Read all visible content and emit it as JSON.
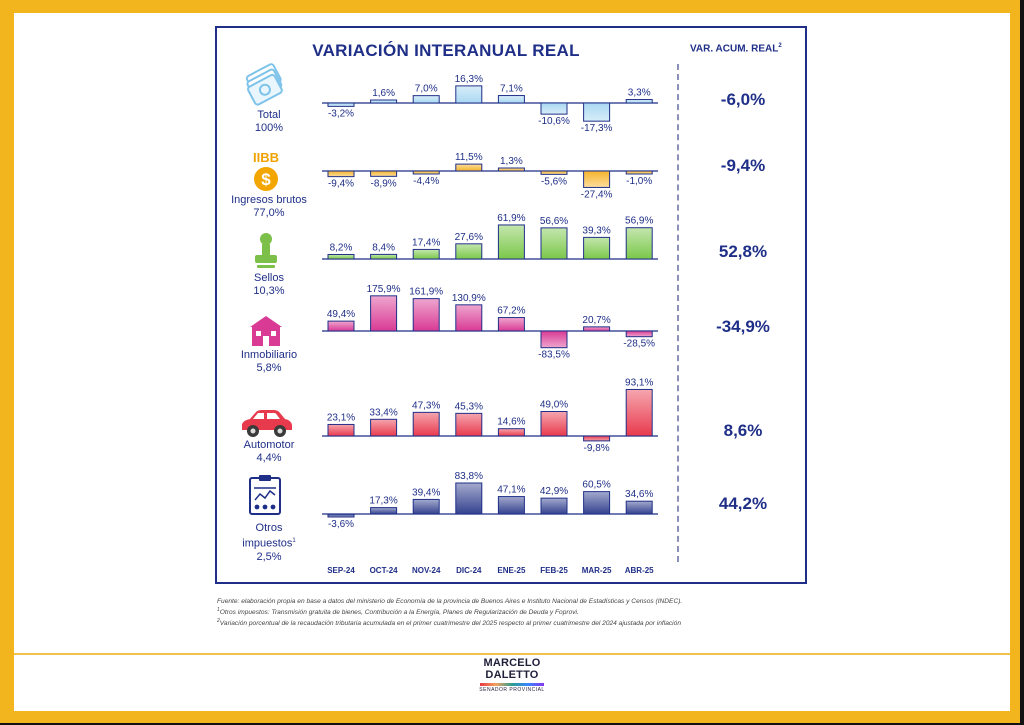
{
  "title": "VARIACIÓN INTERANUAL REAL",
  "acum": {
    "title": "VAR. ACUM. REAL",
    "title_sup": "2"
  },
  "categories": [
    {
      "name": "Total",
      "share": "100%",
      "icon": "money-bills-icon",
      "acum": "-6,0%"
    },
    {
      "name": "Ingresos brutos",
      "share": "77,0%",
      "icon": "iibb-dollar-coin-icon",
      "icon_text": "IIBB",
      "acum": "-9,4%"
    },
    {
      "name": "Sellos",
      "share": "10,3%",
      "icon": "stamp-icon",
      "acum": "52,8%"
    },
    {
      "name": "Inmobiliario",
      "share": "5,8%",
      "icon": "house-icon",
      "acum": "-34,9%"
    },
    {
      "name": "Automotor",
      "share": "4,4%",
      "icon": "car-icon",
      "acum": "8,6%"
    },
    {
      "name_line1": "Otros",
      "name_line2": "impuestos",
      "name_sup": "1",
      "share": "2,5%",
      "icon": "document-icon",
      "acum": "44,2%"
    }
  ],
  "colors": {
    "navy": "#1f2f88",
    "series": [
      "#a9d8f2",
      "#f6b42a",
      "#7bc84a",
      "#d93a94",
      "#e83a4d",
      "#34428f"
    ]
  },
  "chart_data": {
    "type": "bar",
    "title": "VARIACIÓN INTERANUAL REAL",
    "categories": [
      "SEP-24",
      "OCT-24",
      "NOV-24",
      "DIC-24",
      "ENE-25",
      "FEB-25",
      "MAR-25",
      "ABR-25"
    ],
    "series": [
      {
        "name": "Total",
        "values": [
          -3.2,
          1.6,
          7.0,
          16.3,
          7.1,
          -10.6,
          -17.3,
          3.3
        ],
        "labels": [
          "-3,2%",
          "1,6%",
          "7,0%",
          "16,3%",
          "7,1%",
          "-10,6%",
          "-17,3%",
          "3,3%"
        ]
      },
      {
        "name": "Ingresos brutos",
        "values": [
          -9.4,
          -8.9,
          -4.4,
          11.5,
          1.3,
          -5.6,
          -27.4,
          -1.0
        ],
        "labels": [
          "-9,4%",
          "-8,9%",
          "-4,4%",
          "11,5%",
          "1,3%",
          "-5,6%",
          "-27,4%",
          "-1,0%"
        ]
      },
      {
        "name": "Sellos",
        "values": [
          8.2,
          8.4,
          17.4,
          27.6,
          61.9,
          56.6,
          39.3,
          56.9
        ],
        "labels": [
          "8,2%",
          "8,4%",
          "17,4%",
          "27,6%",
          "61,9%",
          "56,6%",
          "39,3%",
          "56,9%"
        ]
      },
      {
        "name": "Inmobiliario",
        "values": [
          49.4,
          175.9,
          161.9,
          130.9,
          67.2,
          -83.5,
          20.7,
          -28.5
        ],
        "labels": [
          "49,4%",
          "175,9%",
          "161,9%",
          "130,9%",
          "67,2%",
          "-83,5%",
          "20,7%",
          "-28,5%"
        ]
      },
      {
        "name": "Automotor",
        "values": [
          23.1,
          33.4,
          47.3,
          45.3,
          14.6,
          49.0,
          -9.8,
          93.1
        ],
        "labels": [
          "23,1%",
          "33,4%",
          "47,3%",
          "45,3%",
          "14,6%",
          "49,0%",
          "-9,8%",
          "93,1%"
        ]
      },
      {
        "name": "Otros impuestos",
        "values": [
          -3.6,
          17.3,
          39.4,
          83.8,
          47.1,
          42.9,
          60.5,
          34.6
        ],
        "labels": [
          "-3,6%",
          "17,3%",
          "39,4%",
          "83,8%",
          "47,1%",
          "42,9%",
          "60,5%",
          "34,6%"
        ]
      }
    ],
    "accumulated": {
      "title": "VAR. ACUM. REAL",
      "values": [
        -6.0,
        -9.4,
        52.8,
        -34.9,
        8.6,
        44.2
      ],
      "labels": [
        "-6,0%",
        "-9,4%",
        "52,8%",
        "-34,9%",
        "8,6%",
        "44,2%"
      ]
    }
  },
  "notes": {
    "line1": "Fuente: elaboración propia en base a datos del ministerio de Economía de la provincia de Buenos Aires e Instituto Nacional de Estadísticas y Censos (INDEC).",
    "line2_sup": "1",
    "line2": "Otros impuestos: Transmisión gratuita de bienes, Contribución a la Energía, Planes de Regularización de Deuda y Foprovi.",
    "line3_sup": "2",
    "line3": "Variación porcentual de la recaudación tributaria acumulada en el primer cuatrimestre del 2025 respecto al primer cuatrimestre del 2024 ajustada por inflación"
  },
  "logo": {
    "line1": "MARCELO",
    "line2": "DALETTO",
    "line3": "SENADOR PROVINCIAL"
  }
}
